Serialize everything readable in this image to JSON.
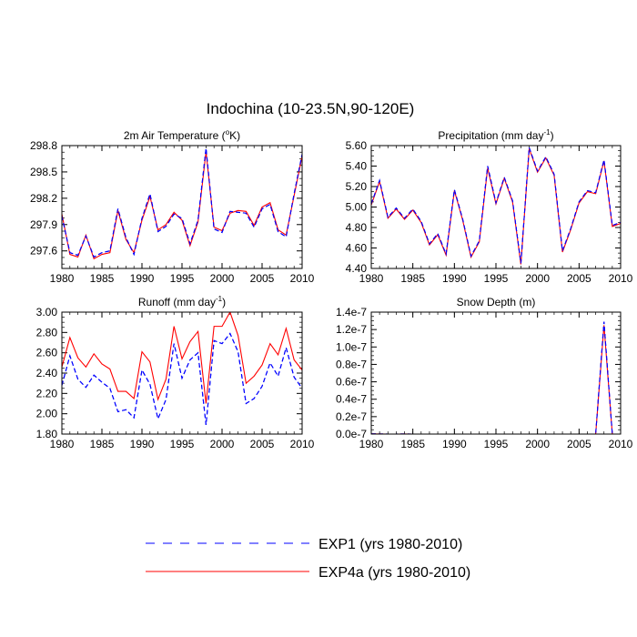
{
  "figure": {
    "title": "Indochina (10-23.5N,90-120E)"
  },
  "chart_data": [
    {
      "type": "line",
      "title_main": "2m Air Temperature (",
      "title_sup": "o",
      "title_tail": "K)",
      "x": [
        1980,
        1981,
        1982,
        1983,
        1984,
        1985,
        1986,
        1987,
        1988,
        1989,
        1990,
        1991,
        1992,
        1993,
        1994,
        1995,
        1996,
        1997,
        1998,
        1999,
        2000,
        2001,
        2002,
        2003,
        2004,
        2005,
        2006,
        2007,
        2008,
        2009,
        2010
      ],
      "xlim": [
        1980,
        2010
      ],
      "xticks": [
        "1980",
        "1985",
        "1990",
        "1995",
        "2000",
        "2005",
        "2010"
      ],
      "ylim": [
        297.4,
        298.8
      ],
      "yticks": [
        "297.6",
        "297.9",
        "298.2",
        "298.5",
        "298.8"
      ],
      "series": [
        {
          "name": "EXP1 (yrs 1980-2010)",
          "color": "#0000ff",
          "dash": "dashed",
          "values": [
            298.0,
            297.58,
            297.55,
            297.77,
            297.53,
            297.58,
            297.6,
            298.08,
            297.75,
            297.56,
            297.97,
            298.25,
            297.82,
            297.88,
            298.02,
            297.97,
            297.68,
            297.95,
            298.77,
            297.85,
            297.81,
            298.05,
            298.04,
            298.03,
            297.87,
            298.08,
            298.13,
            297.82,
            297.76,
            298.25,
            298.7
          ]
        },
        {
          "name": "EXP4a (yrs 1980-2010)",
          "color": "#ff0000",
          "dash": "solid",
          "values": [
            298.02,
            297.56,
            297.53,
            297.78,
            297.51,
            297.56,
            297.58,
            298.06,
            297.73,
            297.58,
            297.95,
            298.22,
            297.84,
            297.9,
            298.04,
            297.95,
            297.66,
            297.93,
            298.73,
            297.87,
            297.83,
            298.03,
            298.06,
            298.05,
            297.89,
            298.1,
            298.15,
            297.84,
            297.78,
            298.23,
            298.68
          ]
        }
      ]
    },
    {
      "type": "line",
      "title_main": "Precipitation (mm day",
      "title_sup": "-1",
      "title_tail": ")",
      "x": [
        1980,
        1981,
        1982,
        1983,
        1984,
        1985,
        1986,
        1987,
        1988,
        1989,
        1990,
        1991,
        1992,
        1993,
        1994,
        1995,
        1996,
        1997,
        1998,
        1999,
        2000,
        2001,
        2002,
        2003,
        2004,
        2005,
        2006,
        2007,
        2008,
        2009,
        2010
      ],
      "xlim": [
        1980,
        2010
      ],
      "xticks": [
        "1980",
        "1985",
        "1990",
        "1995",
        "2000",
        "2005",
        "2010"
      ],
      "ylim": [
        4.4,
        5.6
      ],
      "yticks": [
        "4.40",
        "4.60",
        "4.80",
        "5.00",
        "5.20",
        "5.40",
        "5.60"
      ],
      "series": [
        {
          "name": "EXP1 (yrs 1980-2010)",
          "color": "#0000ff",
          "dash": "dashed",
          "values": [
            5.03,
            5.26,
            4.9,
            4.99,
            4.89,
            4.98,
            4.86,
            4.64,
            4.74,
            4.54,
            5.17,
            4.88,
            4.52,
            4.67,
            5.4,
            5.04,
            5.29,
            5.06,
            4.45,
            5.58,
            5.35,
            5.49,
            5.32,
            4.57,
            4.79,
            5.05,
            5.16,
            5.14,
            5.46,
            4.82,
            4.85
          ]
        },
        {
          "name": "EXP4a (yrs 1980-2010)",
          "color": "#ff0000",
          "dash": "solid",
          "values": [
            5.02,
            5.25,
            4.89,
            4.98,
            4.88,
            4.97,
            4.85,
            4.63,
            4.73,
            4.53,
            5.16,
            4.87,
            4.51,
            4.66,
            5.38,
            5.03,
            5.28,
            5.05,
            4.44,
            5.57,
            5.34,
            5.48,
            5.31,
            4.56,
            4.78,
            5.04,
            5.15,
            5.13,
            5.45,
            4.81,
            4.84
          ]
        }
      ]
    },
    {
      "type": "line",
      "title_main": "Runoff (mm day",
      "title_sup": "-1",
      "title_tail": ")",
      "x": [
        1980,
        1981,
        1982,
        1983,
        1984,
        1985,
        1986,
        1987,
        1988,
        1989,
        1990,
        1991,
        1992,
        1993,
        1994,
        1995,
        1996,
        1997,
        1998,
        1999,
        2000,
        2001,
        2002,
        2003,
        2004,
        2005,
        2006,
        2007,
        2008,
        2009,
        2010
      ],
      "xlim": [
        1980,
        2010
      ],
      "xticks": [
        "1980",
        "1985",
        "1990",
        "1995",
        "2000",
        "2005",
        "2010"
      ],
      "ylim": [
        1.8,
        3.0
      ],
      "yticks": [
        "1.80",
        "2.00",
        "2.20",
        "2.40",
        "2.60",
        "2.80",
        "3.00"
      ],
      "series": [
        {
          "name": "EXP1 (yrs 1980-2010)",
          "color": "#0000ff",
          "dash": "dashed",
          "values": [
            2.28,
            2.57,
            2.34,
            2.26,
            2.38,
            2.31,
            2.25,
            2.02,
            2.04,
            1.96,
            2.43,
            2.29,
            1.95,
            2.14,
            2.69,
            2.35,
            2.53,
            2.6,
            1.89,
            2.72,
            2.69,
            2.79,
            2.61,
            2.1,
            2.15,
            2.27,
            2.5,
            2.37,
            2.65,
            2.36,
            2.25
          ]
        },
        {
          "name": "EXP4a (yrs 1980-2010)",
          "color": "#ff0000",
          "dash": "solid",
          "values": [
            2.46,
            2.75,
            2.55,
            2.46,
            2.59,
            2.49,
            2.44,
            2.22,
            2.22,
            2.15,
            2.61,
            2.51,
            2.14,
            2.34,
            2.86,
            2.54,
            2.71,
            2.81,
            2.1,
            2.86,
            2.86,
            3.0,
            2.77,
            2.3,
            2.37,
            2.48,
            2.69,
            2.58,
            2.84,
            2.53,
            2.43
          ]
        }
      ]
    },
    {
      "type": "line",
      "title_main": "Snow Depth (m)",
      "title_sup": "",
      "title_tail": "",
      "x": [
        1980,
        1981,
        1982,
        1983,
        1984,
        1985,
        1986,
        1987,
        1988,
        1989,
        1990,
        1991,
        1992,
        1993,
        1994,
        1995,
        1996,
        1997,
        1998,
        1999,
        2000,
        2001,
        2002,
        2003,
        2004,
        2005,
        2006,
        2007,
        2008,
        2009
      ],
      "xlim": [
        1980,
        2010
      ],
      "xticks": [
        "1980",
        "1985",
        "1990",
        "1995",
        "2000",
        "2005",
        "2010"
      ],
      "ylim": [
        0,
        1.4e-07
      ],
      "yticks": [
        "0.0e-7",
        "0.2e-7",
        "0.4e-7",
        "0.6e-7",
        "0.8e-7",
        "1.0e-7",
        "1.2e-7",
        "1.4e-7"
      ],
      "series": [
        {
          "name": "EXP1 (yrs 1980-2010)",
          "color": "#0000ff",
          "dash": "dashed",
          "values": [
            2e-10,
            1e-10,
            0,
            0,
            1e-10,
            0,
            0,
            0,
            0,
            0,
            0,
            0,
            0,
            0,
            0,
            0,
            0,
            0,
            0,
            0,
            0,
            0,
            0,
            0,
            0,
            0,
            0,
            0,
            1.29e-07,
            0
          ]
        },
        {
          "name": "EXP4a (yrs 1980-2010)",
          "color": "#ff0000",
          "dash": "solid",
          "values": [
            2e-10,
            1e-10,
            0,
            0,
            1e-10,
            0,
            0,
            0,
            0,
            0,
            0,
            0,
            0,
            0,
            0,
            0,
            0,
            0,
            0,
            0,
            0,
            0,
            0,
            0,
            0,
            0,
            0,
            0,
            1.25e-07,
            0
          ]
        }
      ]
    }
  ],
  "legend": {
    "placement": "bottom-center",
    "items": [
      {
        "label": "EXP1 (yrs 1980-2010)",
        "color": "#0000ff",
        "dash": "dashed"
      },
      {
        "label": "EXP4a (yrs 1980-2010)",
        "color": "#ff0000",
        "dash": "solid"
      }
    ]
  }
}
